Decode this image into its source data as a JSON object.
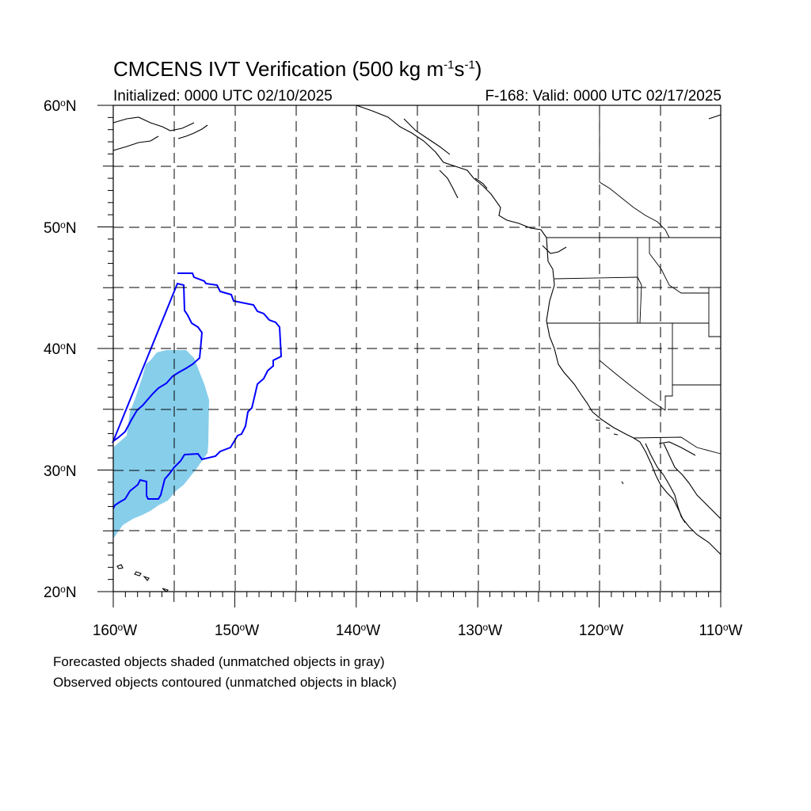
{
  "title": {
    "prefix": "CMCENS IVT Verification (500 kg m",
    "sup1": "-1",
    "mid": "s",
    "sup2": "-1",
    "suffix": ")"
  },
  "initialized": "Initialized: 0000 UTC 02/10/2025",
  "valid": "F-168: Valid: 0000 UTC 02/17/2025",
  "lat_labels": [
    "60",
    "50",
    "40",
    "30",
    "20"
  ],
  "lat_suffix": "N",
  "lon_labels": [
    "160",
    "150",
    "140",
    "130",
    "120",
    "110"
  ],
  "lon_suffix": "W",
  "degree_symbol": "o",
  "footnote": {
    "line1": "Forecasted objects shaded (unmatched objects in gray)",
    "line2": "Observed objects contoured (unmatched objects in black)"
  },
  "colors": {
    "forecast_fill": "#87ceeb",
    "observed_contour": "#0000ff",
    "coastline": "#000000",
    "grid": "#000000"
  },
  "map_extent": {
    "lon_min": -160,
    "lon_max": -110,
    "lat_min": 20,
    "lat_max": 60
  }
}
